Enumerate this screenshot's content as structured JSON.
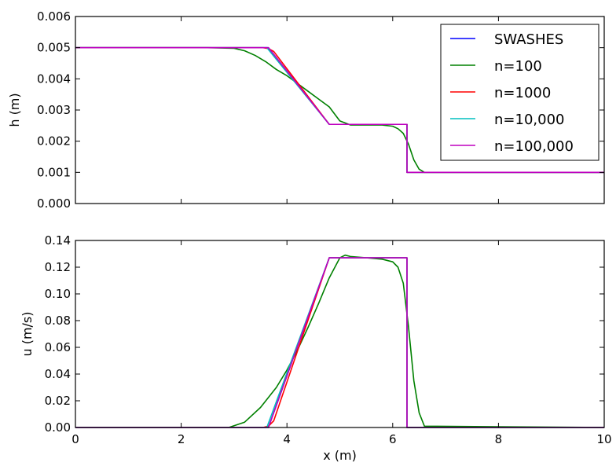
{
  "chart_data": [
    {
      "type": "line",
      "xlabel": "",
      "ylabel": "h (m)",
      "xlim": [
        0,
        10
      ],
      "ylim": [
        0,
        0.006
      ],
      "xticks": [
        0,
        2,
        4,
        6,
        8,
        10
      ],
      "yticks": [
        "0.000",
        "0.001",
        "0.002",
        "0.003",
        "0.004",
        "0.005",
        "0.006"
      ],
      "legend": {
        "placement": "top-right",
        "entries": [
          "SWASHES",
          "n=100",
          "n=1000",
          "n=10,000",
          "n=100,000"
        ]
      },
      "series": [
        {
          "name": "SWASHES",
          "color": "#0000ff",
          "x": [
            0,
            3.65,
            4.8,
            6.27,
            6.27,
            10
          ],
          "y": [
            0.005,
            0.005,
            0.00254,
            0.00254,
            0.001,
            0.001
          ]
        },
        {
          "name": "n=100",
          "color": "#008000",
          "x": [
            0,
            2.5,
            3.0,
            3.2,
            3.4,
            3.6,
            3.8,
            4.0,
            4.2,
            4.4,
            4.6,
            4.8,
            5.0,
            5.2,
            5.5,
            5.8,
            6.0,
            6.1,
            6.2,
            6.3,
            6.4,
            6.5,
            6.6,
            10
          ],
          "y": [
            0.005,
            0.005,
            0.00498,
            0.0049,
            0.00475,
            0.00455,
            0.0043,
            0.0041,
            0.00385,
            0.0036,
            0.00335,
            0.0031,
            0.00265,
            0.00252,
            0.00252,
            0.00252,
            0.00248,
            0.0024,
            0.00225,
            0.0019,
            0.0014,
            0.0011,
            0.001,
            0.001
          ]
        },
        {
          "name": "n=1000",
          "color": "#ff0000",
          "x": [
            0,
            3.55,
            3.65,
            3.75,
            4.8,
            6.27,
            6.27,
            10
          ],
          "y": [
            0.005,
            0.005,
            0.00497,
            0.00488,
            0.00254,
            0.00254,
            0.001,
            0.001
          ]
        },
        {
          "name": "n=10,000",
          "color": "#00bfbf",
          "x": [
            0,
            3.62,
            4.8,
            6.27,
            6.27,
            10
          ],
          "y": [
            0.005,
            0.005,
            0.00254,
            0.00254,
            0.001,
            0.001
          ]
        },
        {
          "name": "n=100,000",
          "color": "#bf00bf",
          "x": [
            0,
            3.65,
            4.8,
            6.27,
            6.27,
            10
          ],
          "y": [
            0.005,
            0.005,
            0.00254,
            0.00254,
            0.001,
            0.001
          ]
        }
      ]
    },
    {
      "type": "line",
      "xlabel": "x (m)",
      "ylabel": "u (m/s)",
      "xlim": [
        0,
        10
      ],
      "ylim": [
        0,
        0.14
      ],
      "xticks": [
        0,
        2,
        4,
        6,
        8,
        10
      ],
      "yticks": [
        "0.00",
        "0.02",
        "0.04",
        "0.06",
        "0.08",
        "0.10",
        "0.12",
        "0.14"
      ],
      "series": [
        {
          "name": "SWASHES",
          "color": "#0000ff",
          "x": [
            0,
            3.65,
            4.8,
            6.27,
            6.27,
            10
          ],
          "y": [
            0,
            0,
            0.127,
            0.127,
            0,
            0
          ]
        },
        {
          "name": "n=100",
          "color": "#008000",
          "x": [
            0,
            2.9,
            3.2,
            3.5,
            3.8,
            4.0,
            4.2,
            4.4,
            4.6,
            4.8,
            5.0,
            5.1,
            5.2,
            5.5,
            5.8,
            6.0,
            6.1,
            6.2,
            6.3,
            6.4,
            6.5,
            6.6,
            10
          ],
          "y": [
            0,
            0,
            0.004,
            0.015,
            0.03,
            0.043,
            0.058,
            0.075,
            0.093,
            0.112,
            0.127,
            0.129,
            0.128,
            0.127,
            0.126,
            0.124,
            0.12,
            0.108,
            0.075,
            0.035,
            0.011,
            0.001,
            0
          ]
        },
        {
          "name": "n=1000",
          "color": "#ff0000",
          "x": [
            0,
            3.55,
            3.65,
            3.75,
            4.8,
            6.27,
            6.27,
            10
          ],
          "y": [
            0,
            0,
            0.001,
            0.005,
            0.127,
            0.127,
            0,
            0
          ]
        },
        {
          "name": "n=10,000",
          "color": "#00bfbf",
          "x": [
            0,
            3.62,
            4.8,
            6.27,
            6.27,
            10
          ],
          "y": [
            0,
            0,
            0.127,
            0.127,
            0,
            0
          ]
        },
        {
          "name": "n=100,000",
          "color": "#bf00bf",
          "x": [
            0,
            3.65,
            4.8,
            6.27,
            6.27,
            10
          ],
          "y": [
            0,
            0,
            0.127,
            0.127,
            0,
            0
          ]
        }
      ]
    }
  ]
}
